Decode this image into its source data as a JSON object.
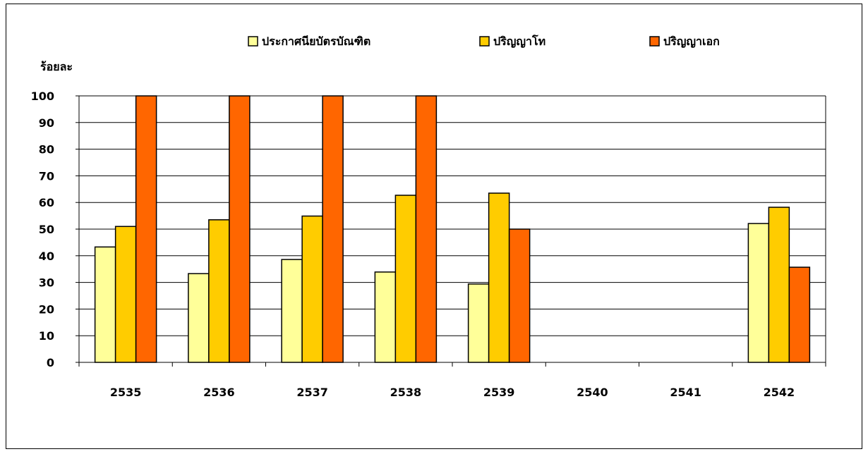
{
  "chart_data": {
    "type": "bar",
    "title": "",
    "ylabel": "ร้อยละ",
    "xlabel": "",
    "ylim": [
      0,
      100
    ],
    "yticks": [
      0,
      10,
      20,
      30,
      40,
      50,
      60,
      70,
      80,
      90,
      100
    ],
    "grid": true,
    "legend_position": "top",
    "categories": [
      "2535",
      "2536",
      "2537",
      "2538",
      "2539",
      "2540",
      "2541",
      "2542"
    ],
    "series": [
      {
        "name": "ประกาศนียบัตรบัณฑิต",
        "color": "#FFFF99",
        "values": [
          43.3,
          33.3,
          38.6,
          33.9,
          29.4,
          null,
          null,
          52.1
        ]
      },
      {
        "name": "ปริญญาโท",
        "color": "#FFCC00",
        "values": [
          51.0,
          53.5,
          54.9,
          62.7,
          63.5,
          null,
          null,
          58.2
        ]
      },
      {
        "name": "ปริญญาเอก",
        "color": "#FF6600",
        "values": [
          100,
          100,
          100,
          100,
          50.0,
          null,
          null,
          35.7
        ]
      }
    ]
  }
}
